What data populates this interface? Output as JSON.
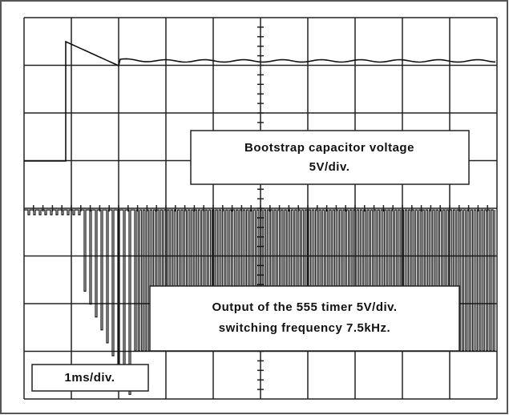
{
  "traces": {
    "upper": {
      "label": [
        "Bootstrap capacitor voltage",
        "5V/div."
      ]
    },
    "lower": {
      "label": [
        "Output of the 555 timer 5V/div.",
        "switching frequency 7.5kHz."
      ]
    }
  },
  "timebase": "1ms/div."
}
